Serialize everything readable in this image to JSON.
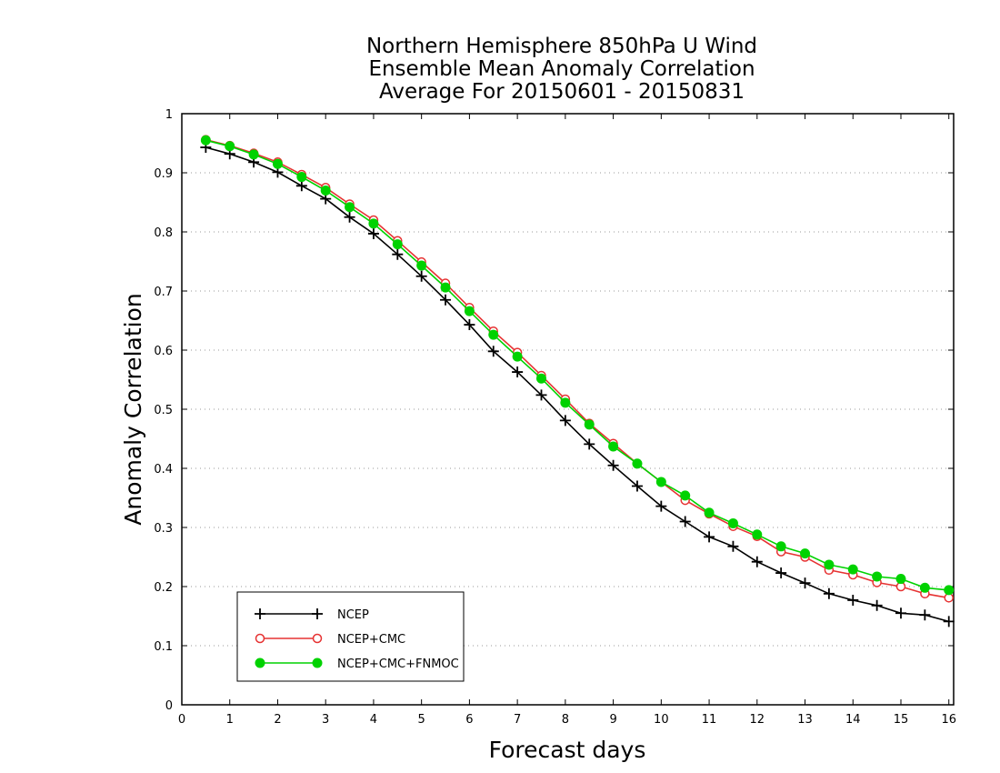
{
  "chart_data": {
    "type": "line",
    "title": [
      "Northern Hemisphere 850hPa U Wind",
      "Ensemble Mean Anomaly Correlation",
      "Average For 20150601 - 20150831"
    ],
    "xlabel": "Forecast days",
    "ylabel": "Anomaly Correlation",
    "xlim": [
      0,
      16.1
    ],
    "ylim": [
      0,
      1
    ],
    "xticks": [
      "0",
      "1",
      "2",
      "3",
      "4",
      "5",
      "6",
      "7",
      "8",
      "9",
      "10",
      "11",
      "12",
      "13",
      "14",
      "15",
      "16"
    ],
    "yticks": [
      "0",
      "0.1",
      "0.2",
      "0.3",
      "0.4",
      "0.5",
      "0.6",
      "0.7",
      "0.8",
      "0.9",
      "1"
    ],
    "grid": "horizontal dotted",
    "legend_position": "bottom-left",
    "x": [
      0.5,
      1,
      1.5,
      2,
      2.5,
      3,
      3.5,
      4,
      4.5,
      5,
      5.5,
      6,
      6.5,
      7,
      7.5,
      8,
      8.5,
      9,
      9.5,
      10,
      10.5,
      11,
      11.5,
      12,
      12.5,
      13,
      13.5,
      14,
      14.5,
      15,
      15.5,
      16
    ],
    "series": [
      {
        "name": "NCEP",
        "color": "#000000",
        "marker": "plus",
        "values": [
          0.943,
          0.932,
          0.918,
          0.901,
          0.878,
          0.856,
          0.825,
          0.797,
          0.762,
          0.725,
          0.685,
          0.643,
          0.598,
          0.563,
          0.524,
          0.481,
          0.441,
          0.405,
          0.37,
          0.336,
          0.31,
          0.284,
          0.268,
          0.242,
          0.223,
          0.206,
          0.188,
          0.177,
          0.168,
          0.155,
          0.152,
          0.141
        ]
      },
      {
        "name": "NCEP+CMC",
        "color": "#e63232",
        "marker": "open-circle",
        "values": [
          0.956,
          0.946,
          0.933,
          0.918,
          0.897,
          0.875,
          0.847,
          0.82,
          0.785,
          0.749,
          0.713,
          0.672,
          0.632,
          0.596,
          0.557,
          0.517,
          0.476,
          0.442,
          0.408,
          0.377,
          0.346,
          0.323,
          0.302,
          0.285,
          0.259,
          0.25,
          0.228,
          0.22,
          0.207,
          0.2,
          0.188,
          0.181
        ]
      },
      {
        "name": "NCEP+CMC+FNMOC",
        "color": "#00d200",
        "marker": "filled-circle",
        "values": [
          0.955,
          0.945,
          0.931,
          0.915,
          0.893,
          0.87,
          0.842,
          0.814,
          0.779,
          0.743,
          0.706,
          0.666,
          0.626,
          0.589,
          0.552,
          0.511,
          0.474,
          0.437,
          0.408,
          0.377,
          0.354,
          0.325,
          0.307,
          0.288,
          0.268,
          0.256,
          0.237,
          0.229,
          0.217,
          0.213,
          0.198,
          0.194
        ]
      }
    ]
  }
}
